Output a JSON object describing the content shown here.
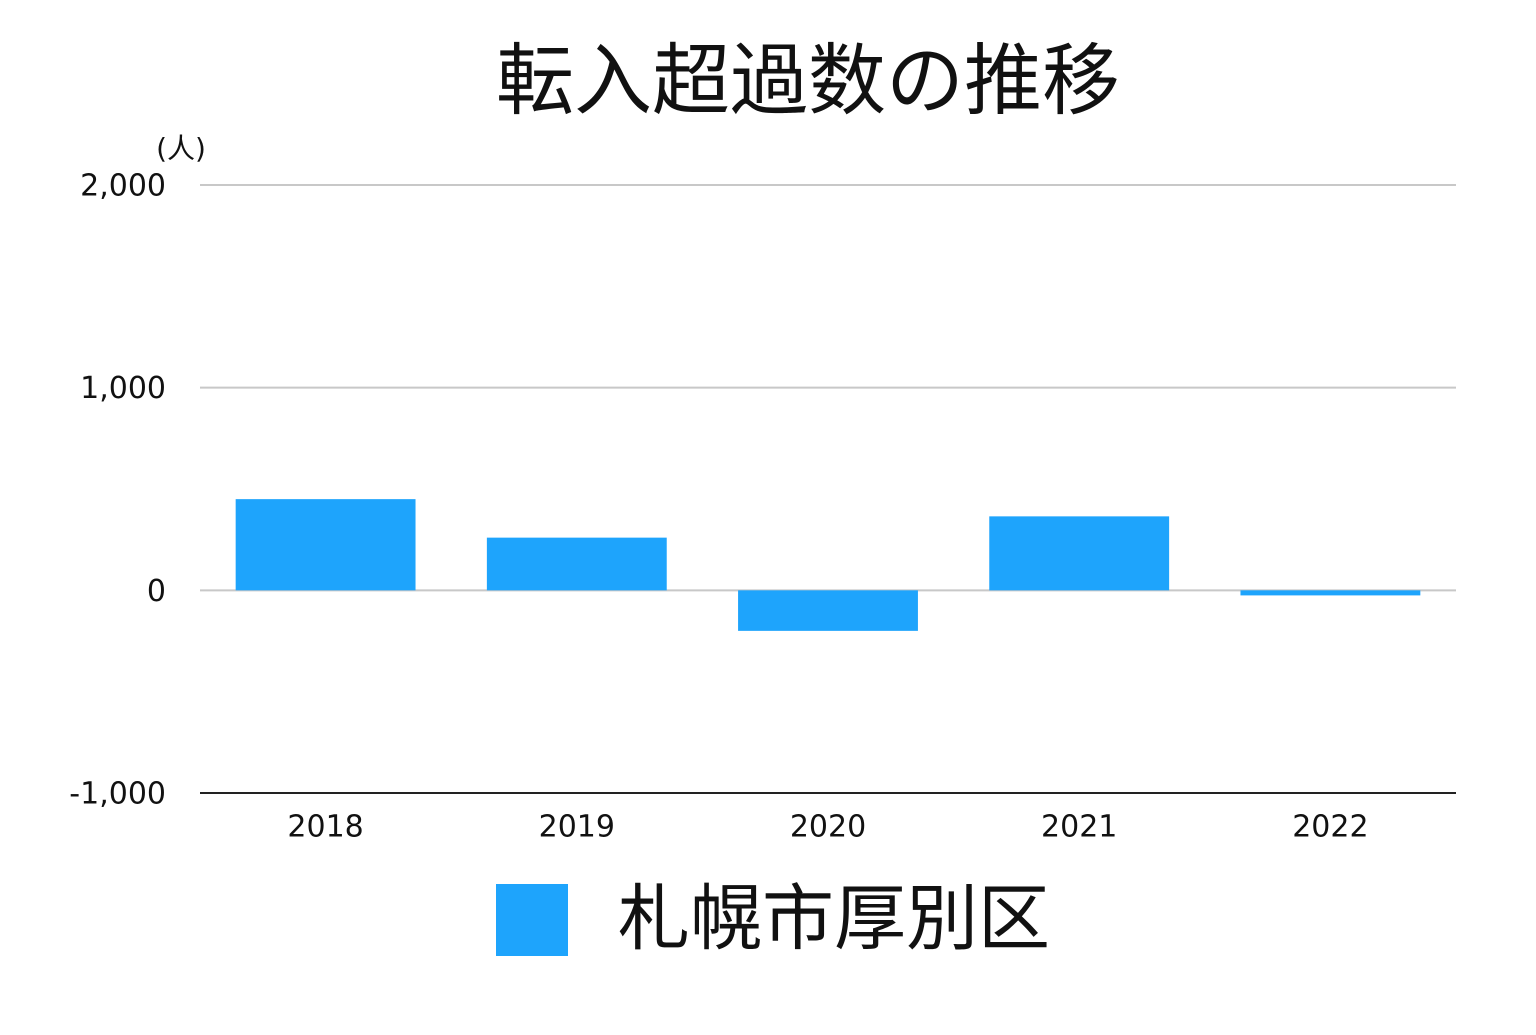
{
  "chart_data": {
    "type": "bar",
    "title": "転入超過数の推移",
    "y_label": "(人)",
    "categories": [
      "2018",
      "2019",
      "2020",
      "2021",
      "2022"
    ],
    "series": [
      {
        "name": "札幌市厚別区",
        "color": "#1ea4fc",
        "values": [
          450,
          260,
          -200,
          365,
          -25
        ]
      }
    ],
    "ylim": [
      -1000,
      2000
    ],
    "yticks": [
      {
        "value": -1000,
        "label": "-1,000"
      },
      0,
      {
        "value": 1000,
        "label": "1,000"
      },
      {
        "value": 2000,
        "label": "2,000"
      }
    ],
    "grid": true,
    "legend": "bottom"
  }
}
